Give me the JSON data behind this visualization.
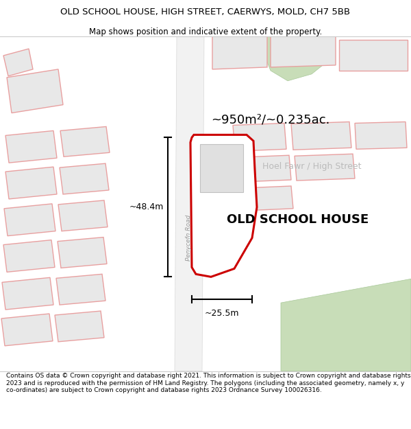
{
  "title": "OLD SCHOOL HOUSE, HIGH STREET, CAERWYS, MOLD, CH7 5BB",
  "subtitle": "Map shows position and indicative extent of the property.",
  "area_text": "~950m²/~0.235ac.",
  "street_label": "Hoel Fawr / High Street",
  "road_label": "Penycefn Road",
  "property_label": "OLD SCHOOL HOUSE",
  "dim_height": "~48.4m",
  "dim_width": "~25.5m",
  "footer": "Contains OS data © Crown copyright and database right 2021. This information is subject to Crown copyright and database rights 2023 and is reproduced with the permission of HM Land Registry. The polygons (including the associated geometry, namely x, y co-ordinates) are subject to Crown copyright and database rights 2023 Ordnance Survey 100026316.",
  "bg_color": "#ffffff",
  "building_fill": "#e8e8e8",
  "building_stroke": "#e8a0a0",
  "property_fill": "#ffffff",
  "property_stroke": "#cc0000",
  "green_fill": "#c8ddb8",
  "road_fill": "#f0f0f0"
}
